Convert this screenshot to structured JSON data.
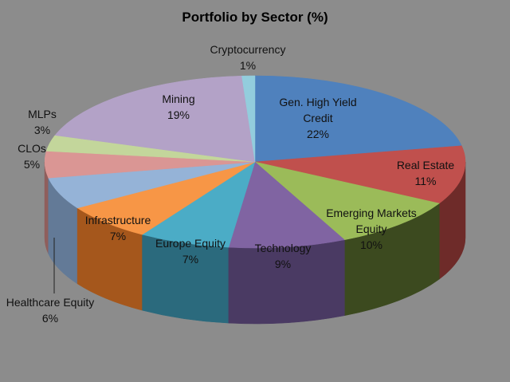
{
  "chart_data": {
    "type": "pie",
    "title": "Portfolio by Sector (%)",
    "slices": [
      {
        "label": "Gen. High Yield Credit",
        "value": 22,
        "value_label": "22%",
        "color": "#4f81bd",
        "side": "#2f4f7a"
      },
      {
        "label": "Real Estate",
        "value": 11,
        "value_label": "11%",
        "color": "#c0504d",
        "side": "#6e2b29"
      },
      {
        "label": "Emerging Markets Equity",
        "value": 10,
        "value_label": "10%",
        "color": "#9bbb59",
        "side": "#3c4a1f"
      },
      {
        "label": "Technology",
        "value": 9,
        "value_label": "9%",
        "color": "#8064a2",
        "side": "#4a3a63"
      },
      {
        "label": "Europe Equity",
        "value": 7,
        "value_label": "7%",
        "color": "#4bacc6",
        "side": "#2b6a7d"
      },
      {
        "label": "Infrastructure",
        "value": 7,
        "value_label": "7%",
        "color": "#f79646",
        "side": "#a5571c"
      },
      {
        "label": "Healthcare Equity",
        "value": 6,
        "value_label": "6%",
        "color": "#95b3d7",
        "side": "#637a97"
      },
      {
        "label": "CLOs",
        "value": 5,
        "value_label": "5%",
        "color": "#da9694",
        "side": "#8f5e5c"
      },
      {
        "label": "MLPs",
        "value": 3,
        "value_label": "3%",
        "color": "#c3d69b",
        "side": "#7f8f5f"
      },
      {
        "label": "Mining",
        "value": 19,
        "value_label": "19%",
        "color": "#b3a2c7",
        "side": "#76698a"
      },
      {
        "label": "Cryptocurrency",
        "value": 1,
        "value_label": "1%",
        "color": "#93cddd",
        "side": "#5f8e9b"
      }
    ]
  }
}
